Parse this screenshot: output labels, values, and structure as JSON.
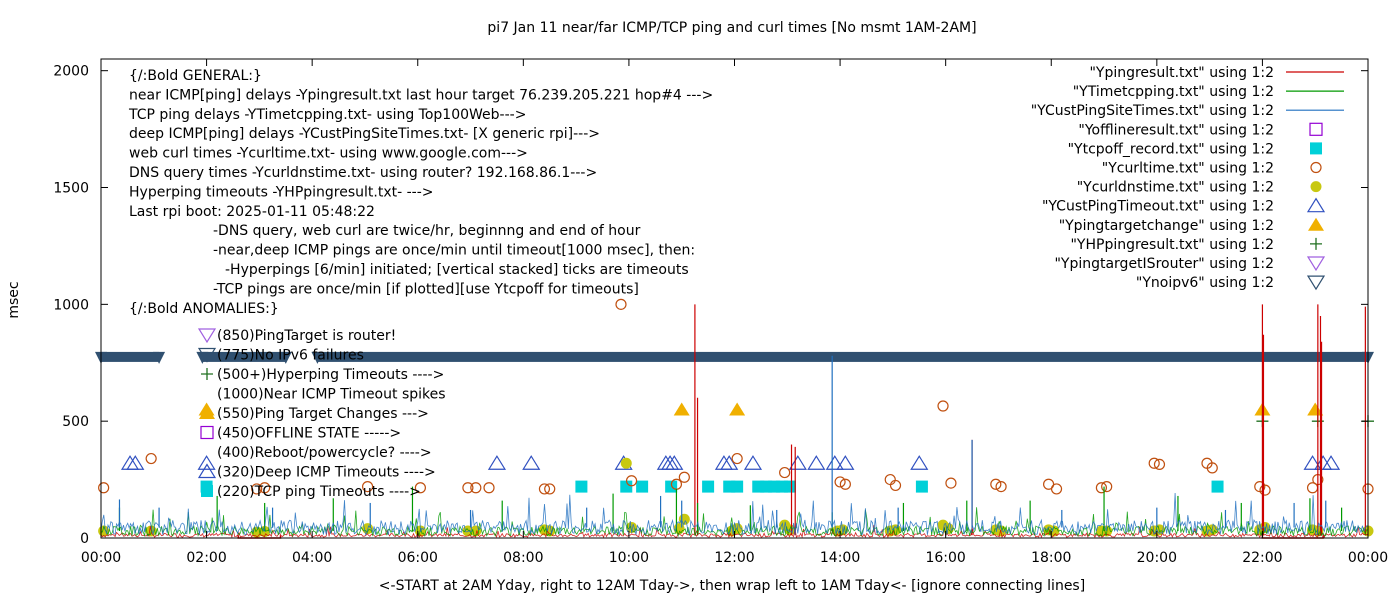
{
  "chart_data": {
    "type": "line",
    "title": "pi7 Jan 11  near/far ICMP/TCP ping and curl times [No msmt 1AM-2AM]",
    "xlabel": "<-START at 2AM Yday, right to 12AM Tday->, then wrap left to 1AM Tday<- [ignore connecting lines]",
    "ylabel": "msec",
    "xlim": [
      0,
      24
    ],
    "ylim": [
      0,
      2050
    ],
    "x_ticks": [
      {
        "v": 0,
        "label": "00:00"
      },
      {
        "v": 2,
        "label": "02:00"
      },
      {
        "v": 4,
        "label": "04:00"
      },
      {
        "v": 6,
        "label": "06:00"
      },
      {
        "v": 8,
        "label": "08:00"
      },
      {
        "v": 10,
        "label": "10:00"
      },
      {
        "v": 12,
        "label": "12:00"
      },
      {
        "v": 14,
        "label": "14:00"
      },
      {
        "v": 16,
        "label": "16:00"
      },
      {
        "v": 18,
        "label": "18:00"
      },
      {
        "v": 20,
        "label": "20:00"
      },
      {
        "v": 22,
        "label": "22:00"
      },
      {
        "v": 24,
        "label": "00:00"
      }
    ],
    "y_ticks": [
      {
        "v": 0,
        "label": "0"
      },
      {
        "v": 500,
        "label": "500"
      },
      {
        "v": 1000,
        "label": "1000"
      },
      {
        "v": 1500,
        "label": "1500"
      },
      {
        "v": 2000,
        "label": "2000"
      }
    ],
    "legend_position": "top-right",
    "legend": [
      {
        "label": "\"Ypingresult.txt\" using 1:2",
        "symbol": "line",
        "color": "#cc0000"
      },
      {
        "label": "\"YTimetcpping.txt\" using 1:2",
        "symbol": "line",
        "color": "#009900"
      },
      {
        "label": "\"YCustPingSiteTimes.txt\" using 1:2",
        "symbol": "line",
        "color": "#1f6fbf"
      },
      {
        "label": "\"Yofflineresult.txt\" using 1:2",
        "symbol": "square-open",
        "color": "#9400d3"
      },
      {
        "label": "\"Ytcpoff_record.txt\" using 1:2",
        "symbol": "square-filled",
        "color": "#00d0d8"
      },
      {
        "label": "\"Ycurltime.txt\" using 1:2",
        "symbol": "circle-open",
        "color": "#c05010"
      },
      {
        "label": "\"Ycurldnstime.txt\" using 1:2",
        "symbol": "circle-filled",
        "color": "#c8c810"
      },
      {
        "label": "\"YCustPingTimeout.txt\" using 1:2",
        "symbol": "triangle-open",
        "color": "#3050c0"
      },
      {
        "label": "\"Ypingtargetchange\" using 1:2",
        "symbol": "triangle-filled",
        "color": "#f0b000"
      },
      {
        "label": "\"YHPpingresult.txt\" using 1:2",
        "symbol": "plus",
        "color": "#207020"
      },
      {
        "label": "\"YpingtargetISrouter\" using 1:2",
        "symbol": "triangle-down-open",
        "color": "#a060e0"
      },
      {
        "label": "\"Ynoipv6\" using 1:2",
        "symbol": "triangle-down-open",
        "color": "#305070"
      }
    ],
    "annotation_lines": [
      "{/:Bold GENERAL:}",
      "near ICMP[ping] delays -Ypingresult.txt last hour target 76.239.205.221 hop#4 --->",
      "TCP ping delays -YTimetcpping.txt- using Top100Web--->",
      "deep ICMP[ping] delays -YCustPingSiteTimes.txt- [X generic rpi]--->",
      "web curl times -Ycurltime.txt- using www.google.com--->",
      "DNS query times -Ycurldnstime.txt- using router? 192.168.86.1--->",
      "Hyperping timeouts -YHPpingresult.txt- --->",
      "Last rpi boot: 2025-01-11 05:48:22",
      "-DNS query, web curl are twice/hr, beginnng and end of hour",
      "-near,deep ICMP pings are once/min until timeout[1000 msec], then:",
      "-Hyperpings [6/min] initiated; [vertical stacked] ticks are timeouts",
      "-TCP pings are once/min [if plotted][use Ytcpoff for timeouts]",
      "{/:Bold ANOMALIES:}"
    ],
    "anomaly_lines": [
      {
        "text": "(850)PingTarget is router!",
        "symbol": "triangle-down-open",
        "color": "#a060e0"
      },
      {
        "text": "(775)No IPv6 failures",
        "symbol": "triangle-down-open",
        "color": "#305070"
      },
      {
        "text": "(500+)Hyperping Timeouts ---->",
        "symbol": "plus",
        "color": "#207020"
      },
      {
        "text": "(1000)Near ICMP Timeout spikes",
        "symbol": "none",
        "color": "#cc0000"
      },
      {
        "text": "(550)Ping Target Changes --->",
        "symbol": "triangle-filled",
        "color": "#f0b000"
      },
      {
        "text": "(450)OFFLINE STATE ----->",
        "symbol": "square-open",
        "color": "#9400d3"
      },
      {
        "text": "(400)Reboot/powercycle? ---->",
        "symbol": "none",
        "color": "#cc0000"
      },
      {
        "text": "(320)Deep ICMP Timeouts ---->",
        "symbol": "triangle-open",
        "color": "#3050c0"
      },
      {
        "text": "(220)TCP ping Timeouts ---->",
        "symbol": "square-filled",
        "color": "#00d0d8"
      }
    ],
    "series": [
      {
        "name": "\"Ynoipv6\" using 1:2",
        "style": "band",
        "y": 775,
        "ranges": [
          [
            0.0,
            1.1
          ],
          [
            1.92,
            3.5
          ],
          [
            4.1,
            24.0
          ]
        ]
      },
      {
        "name": "\"Ytcpoff_record.txt\" using 1:2",
        "style": "square-filled",
        "y": 220,
        "x": [
          2.0,
          9.1,
          9.95,
          10.25,
          10.8,
          11.5,
          11.9,
          12.05,
          12.45,
          12.6,
          12.75,
          12.9,
          13.05,
          15.55,
          21.15
        ]
      },
      {
        "name": "\"YCustPingTimeout.txt\" using 1:2",
        "style": "triangle-open",
        "y": 320,
        "x": [
          0.55,
          0.65,
          2.0,
          7.5,
          8.15,
          9.9,
          10.7,
          10.78,
          10.86,
          11.8,
          11.9,
          12.35,
          13.2,
          13.55,
          13.9,
          14.1,
          15.5,
          22.95,
          23.15,
          23.3
        ]
      },
      {
        "name": "\"Ypingtargetchange\" using 1:2",
        "style": "triangle-filled",
        "y": 550,
        "x": [
          2.0,
          11.0,
          12.05,
          22.0,
          23.0
        ]
      },
      {
        "name": "\"YHPpingresult.txt\" using 1:2",
        "style": "plus",
        "y": 500,
        "x": [
          22.0,
          23.05,
          24.0
        ]
      },
      {
        "name": "\"Ycurltime.txt\" using 1:2",
        "style": "circle-open",
        "x": [
          0.05,
          0.95,
          2.95,
          3.1,
          5.05,
          6.05,
          6.95,
          7.1,
          7.35,
          8.4,
          8.5,
          9.85,
          10.05,
          10.9,
          11.05,
          12.05,
          12.95,
          14.0,
          14.1,
          14.95,
          15.05,
          15.95,
          16.1,
          16.95,
          17.05,
          17.95,
          18.1,
          18.95,
          19.05,
          19.95,
          20.05,
          20.95,
          21.05,
          21.95,
          22.05,
          22.95,
          23.05,
          24.0
        ],
        "y": [
          215,
          340,
          210,
          215,
          220,
          215,
          215,
          215,
          215,
          210,
          210,
          1000,
          245,
          230,
          260,
          340,
          280,
          240,
          230,
          250,
          225,
          565,
          235,
          230,
          220,
          230,
          210,
          215,
          220,
          320,
          315,
          320,
          300,
          220,
          205,
          215,
          250,
          210
        ]
      },
      {
        "name": "\"Ycurldnstime.txt\" using 1:2",
        "style": "circle-filled",
        "x": [
          0.05,
          0.95,
          2.95,
          3.1,
          5.05,
          6.05,
          6.95,
          7.1,
          8.4,
          8.5,
          9.95,
          10.05,
          10.95,
          11.05,
          11.95,
          12.05,
          12.95,
          13.05,
          13.95,
          14.05,
          14.95,
          15.05,
          15.95,
          16.05,
          16.95,
          17.05,
          17.95,
          18.05,
          18.95,
          19.05,
          19.95,
          20.05,
          20.95,
          21.05,
          21.95,
          22.05,
          22.95,
          23.05,
          24.0
        ],
        "y": [
          30,
          30,
          25,
          28,
          40,
          30,
          30,
          30,
          35,
          30,
          320,
          45,
          40,
          80,
          30,
          40,
          55,
          35,
          30,
          35,
          30,
          35,
          55,
          40,
          35,
          30,
          35,
          30,
          30,
          30,
          30,
          35,
          30,
          35,
          35,
          45,
          35,
          30,
          30
        ]
      },
      {
        "name": "\"Ypingresult.txt\" using 1:2",
        "style": "line",
        "spikes": [
          [
            11.25,
            1000
          ],
          [
            11.3,
            600
          ],
          [
            13.08,
            400
          ],
          [
            13.15,
            390
          ],
          [
            16.5,
            420
          ],
          [
            22.0,
            1000
          ],
          [
            22.02,
            870
          ],
          [
            23.05,
            1000
          ],
          [
            23.1,
            950
          ],
          [
            23.12,
            840
          ],
          [
            23.95,
            990
          ]
        ],
        "block": [
          [
            22.0,
            23.15
          ],
          [
            2.6,
            3.4
          ]
        ]
      },
      {
        "name": "\"YTimetcpping.txt\" using 1:2",
        "style": "line",
        "baseline": 30,
        "spikes": [
          [
            0.35,
            130
          ],
          [
            2.2,
            180
          ],
          [
            3.1,
            150
          ],
          [
            4.4,
            170
          ],
          [
            5.9,
            220
          ],
          [
            7.6,
            160
          ],
          [
            9.7,
            190
          ],
          [
            10.9,
            210
          ],
          [
            11.3,
            150
          ],
          [
            12.3,
            140
          ],
          [
            13.85,
            110
          ],
          [
            15.2,
            150
          ],
          [
            16.4,
            160
          ],
          [
            17.6,
            160
          ],
          [
            19.0,
            220
          ],
          [
            20.4,
            180
          ],
          [
            21.6,
            150
          ],
          [
            22.9,
            170
          ],
          [
            23.5,
            130
          ]
        ]
      },
      {
        "name": "\"YCustPingSiteTimes.txt\" using 1:2",
        "style": "line",
        "baseline": 45,
        "spikes": [
          [
            0.35,
            165
          ],
          [
            1.1,
            130
          ],
          [
            3.25,
            130
          ],
          [
            5.1,
            150
          ],
          [
            7.0,
            120
          ],
          [
            9.2,
            130
          ],
          [
            10.6,
            180
          ],
          [
            11.0,
            160
          ],
          [
            12.8,
            120
          ],
          [
            13.85,
            780
          ],
          [
            15.1,
            130
          ],
          [
            16.5,
            420
          ],
          [
            18.2,
            120
          ],
          [
            20.0,
            130
          ],
          [
            21.3,
            120
          ],
          [
            22.6,
            150
          ],
          [
            23.2,
            160
          ]
        ]
      }
    ]
  }
}
